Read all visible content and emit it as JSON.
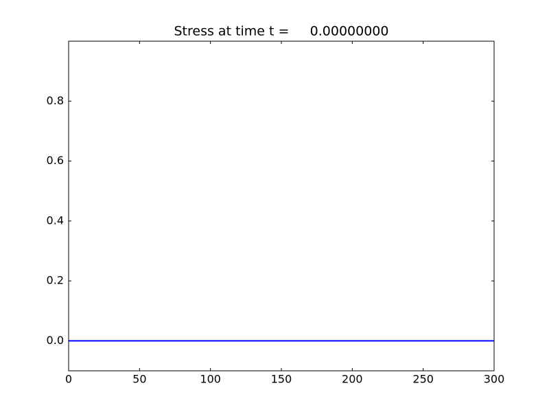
{
  "chart_data": {
    "type": "line",
    "title": "Stress at time t =     0.00000000",
    "x": [
      0,
      300
    ],
    "series": [
      {
        "color": "#0000ff",
        "values": [
          0,
          0
        ]
      }
    ],
    "xlim": [
      0,
      300
    ],
    "xticks": [
      0,
      50,
      100,
      150,
      200,
      250,
      300
    ],
    "ylim": [
      -0.1,
      1.0
    ],
    "yticks": [
      {
        "value": 0,
        "label": "0.0"
      },
      0.2,
      0.4,
      0.6,
      0.8
    ],
    "grid": false
  }
}
